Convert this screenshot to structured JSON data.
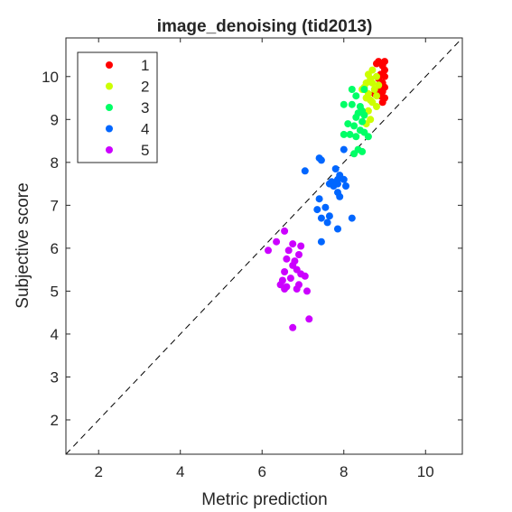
{
  "chart_data": {
    "type": "scatter",
    "title": "image_denoising (tid2013)",
    "xlabel": "Metric prediction",
    "ylabel": "Subjective score",
    "xlim": [
      1.2,
      10.9
    ],
    "ylim": [
      1.2,
      10.9
    ],
    "xticks": [
      2,
      4,
      6,
      8,
      10
    ],
    "yticks": [
      2,
      3,
      4,
      5,
      6,
      7,
      8,
      9,
      10
    ],
    "grid": false,
    "legend_position": "top-left",
    "reference_line": {
      "style": "dashed",
      "color": "#000000",
      "from": [
        1.2,
        1.2
      ],
      "to": [
        10.9,
        10.9
      ]
    },
    "series": [
      {
        "name": "1",
        "color": "#ff0000",
        "points": [
          [
            8.85,
            10.35
          ],
          [
            9.0,
            10.35
          ],
          [
            8.8,
            10.3
          ],
          [
            8.95,
            10.25
          ],
          [
            9.0,
            10.15
          ],
          [
            8.9,
            10.05
          ],
          [
            9.0,
            10.0
          ],
          [
            8.85,
            9.95
          ],
          [
            8.95,
            9.85
          ],
          [
            9.0,
            9.75
          ],
          [
            8.85,
            9.7
          ],
          [
            8.95,
            9.65
          ],
          [
            8.9,
            9.55
          ],
          [
            9.0,
            9.5
          ],
          [
            8.75,
            9.6
          ],
          [
            8.95,
            9.4
          ]
        ]
      },
      {
        "name": "2",
        "color": "#ccff00",
        "points": [
          [
            8.7,
            10.15
          ],
          [
            8.6,
            10.05
          ],
          [
            8.65,
            9.95
          ],
          [
            8.8,
            10.0
          ],
          [
            8.55,
            9.85
          ],
          [
            8.7,
            9.85
          ],
          [
            8.85,
            9.8
          ],
          [
            8.5,
            9.75
          ],
          [
            8.45,
            9.7
          ],
          [
            8.75,
            9.7
          ],
          [
            8.6,
            9.6
          ],
          [
            8.8,
            9.55
          ],
          [
            8.55,
            9.5
          ],
          [
            8.65,
            9.45
          ],
          [
            8.7,
            9.4
          ],
          [
            8.8,
            9.3
          ],
          [
            8.6,
            9.2
          ],
          [
            8.65,
            9.0
          ],
          [
            8.55,
            8.9
          ]
        ]
      },
      {
        "name": "3",
        "color": "#00ff66",
        "points": [
          [
            8.2,
            9.7
          ],
          [
            8.5,
            9.7
          ],
          [
            8.3,
            9.55
          ],
          [
            8.0,
            9.35
          ],
          [
            8.2,
            9.35
          ],
          [
            8.4,
            9.3
          ],
          [
            8.45,
            9.2
          ],
          [
            8.35,
            9.15
          ],
          [
            8.5,
            9.1
          ],
          [
            8.3,
            9.05
          ],
          [
            8.45,
            8.95
          ],
          [
            8.1,
            8.9
          ],
          [
            8.25,
            8.85
          ],
          [
            8.4,
            8.75
          ],
          [
            8.5,
            8.7
          ],
          [
            8.0,
            8.65
          ],
          [
            8.15,
            8.65
          ],
          [
            8.3,
            8.6
          ],
          [
            8.6,
            8.6
          ],
          [
            8.35,
            8.3
          ],
          [
            8.45,
            8.25
          ],
          [
            8.25,
            8.2
          ]
        ]
      },
      {
        "name": "4",
        "color": "#0066ff",
        "points": [
          [
            7.4,
            8.1
          ],
          [
            7.45,
            8.05
          ],
          [
            7.8,
            7.85
          ],
          [
            7.05,
            7.8
          ],
          [
            7.9,
            7.7
          ],
          [
            7.85,
            7.6
          ],
          [
            8.0,
            7.6
          ],
          [
            7.7,
            7.55
          ],
          [
            7.65,
            7.5
          ],
          [
            7.75,
            7.45
          ],
          [
            7.85,
            7.5
          ],
          [
            8.05,
            7.45
          ],
          [
            7.85,
            7.3
          ],
          [
            7.9,
            7.2
          ],
          [
            7.4,
            7.15
          ],
          [
            7.55,
            6.95
          ],
          [
            7.35,
            6.9
          ],
          [
            7.65,
            6.75
          ],
          [
            7.45,
            6.7
          ],
          [
            7.6,
            6.6
          ],
          [
            8.2,
            6.7
          ],
          [
            7.85,
            6.45
          ],
          [
            7.45,
            6.15
          ],
          [
            8.0,
            8.3
          ]
        ]
      },
      {
        "name": "5",
        "color": "#cc00ff",
        "points": [
          [
            6.55,
            6.4
          ],
          [
            6.35,
            6.15
          ],
          [
            6.75,
            6.1
          ],
          [
            6.95,
            6.05
          ],
          [
            6.65,
            5.95
          ],
          [
            6.15,
            5.95
          ],
          [
            6.9,
            5.85
          ],
          [
            6.6,
            5.75
          ],
          [
            6.8,
            5.7
          ],
          [
            6.75,
            5.6
          ],
          [
            6.85,
            5.5
          ],
          [
            6.95,
            5.4
          ],
          [
            6.55,
            5.45
          ],
          [
            7.05,
            5.35
          ],
          [
            6.7,
            5.3
          ],
          [
            6.5,
            5.25
          ],
          [
            6.45,
            5.15
          ],
          [
            6.9,
            5.15
          ],
          [
            6.6,
            5.1
          ],
          [
            6.55,
            5.05
          ],
          [
            6.85,
            5.05
          ],
          [
            7.1,
            5.0
          ],
          [
            7.15,
            4.35
          ],
          [
            6.75,
            4.15
          ]
        ]
      }
    ]
  }
}
